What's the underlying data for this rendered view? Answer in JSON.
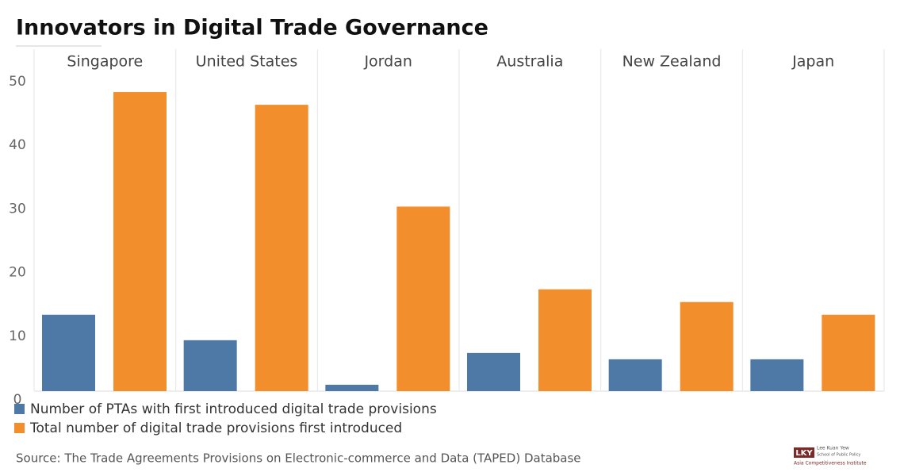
{
  "chart_data": {
    "type": "bar",
    "title": "Innovators in Digital Trade Governance",
    "categories": [
      "Singapore",
      "United States",
      "Jordan",
      "Australia",
      "New Zealand",
      "Japan"
    ],
    "series": [
      {
        "name": "Number of PTAs with first introduced digital trade provisions",
        "color": "#4e79a7",
        "values": [
          12,
          8,
          1,
          6,
          5,
          5
        ]
      },
      {
        "name": "Total number of digital trade provisions first introduced",
        "color": "#f28e2b",
        "values": [
          47,
          45,
          29,
          16,
          14,
          12
        ]
      }
    ],
    "ylim": [
      0,
      50
    ],
    "yticks": [
      0,
      10,
      20,
      30,
      40,
      50
    ],
    "grid": false,
    "source": "Source: The Trade Agreements Provisions on Electronic-commerce and Data (TAPED) Database",
    "logo": {
      "mark": "LKY",
      "line1": "Lee Kuan Yew",
      "line2": "School of Public Policy",
      "line3": "Asia Competitiveness Institute"
    }
  }
}
